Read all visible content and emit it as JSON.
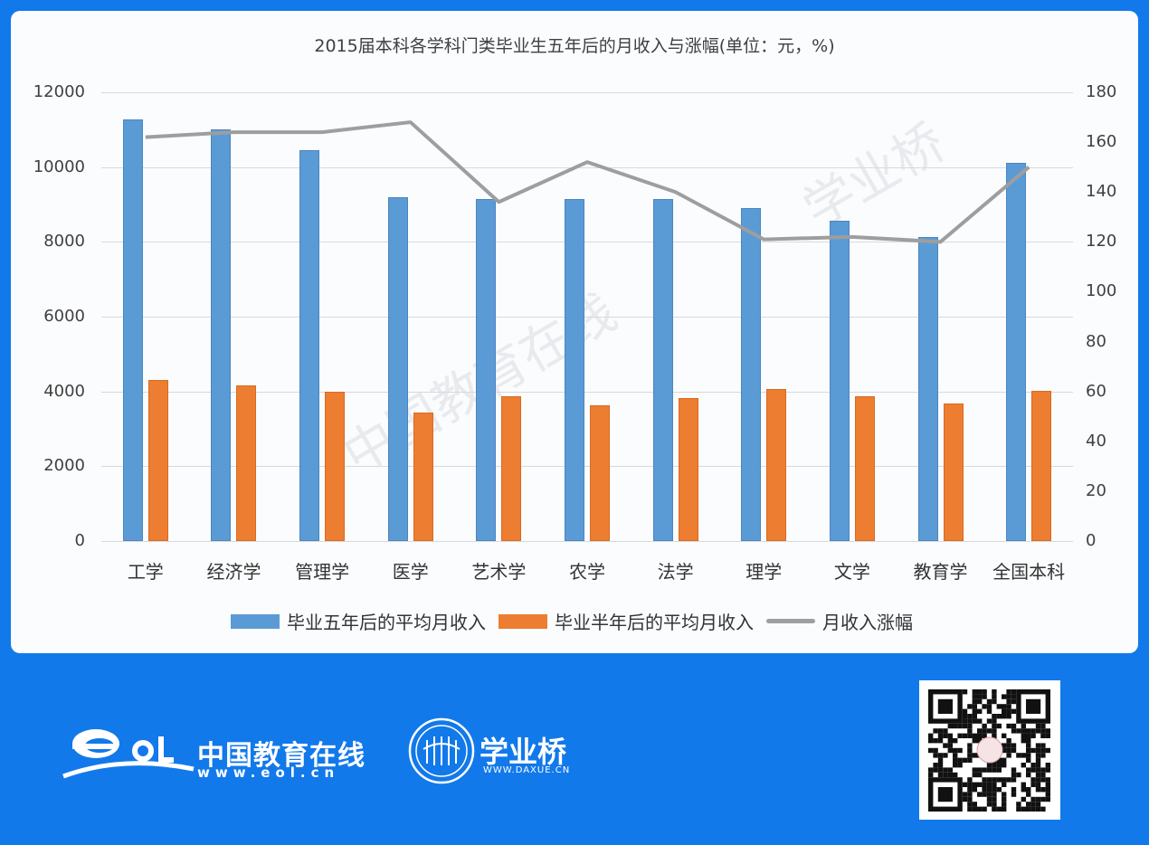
{
  "title": "2015届本科各学科门类毕业生五年后的月收入与涨幅(单位：元，%)",
  "chart_data": {
    "type": "bar",
    "title": "2015届本科各学科门类毕业生五年后的月收入与涨幅(单位：元，%)",
    "categories": [
      "工学",
      "经济学",
      "管理学",
      "医学",
      "艺术学",
      "农学",
      "法学",
      "理学",
      "文学",
      "教育学",
      "全国本科"
    ],
    "series": [
      {
        "name": "毕业五年后的平均月收入",
        "type": "bar",
        "axis": "left",
        "color": "#5b9bd5",
        "values": [
          11275,
          11009,
          10452,
          9194,
          9146,
          9146,
          9146,
          8904,
          8565,
          8130,
          10113
        ]
      },
      {
        "name": "毕业半年后的平均月收入",
        "type": "bar",
        "axis": "left",
        "color": "#ed7d31",
        "values": [
          4307,
          4162,
          3992,
          3436,
          3871,
          3629,
          3823,
          4065,
          3871,
          3678,
          4017
        ]
      },
      {
        "name": "月收入涨幅",
        "type": "line",
        "axis": "right",
        "color": "#9e9e9e",
        "values": [
          162,
          164,
          164,
          168,
          136,
          152,
          140,
          121,
          122,
          120,
          150
        ]
      }
    ],
    "y_left": {
      "ylim": [
        0,
        12000
      ],
      "ticks": [
        0,
        2000,
        4000,
        6000,
        8000,
        10000,
        12000
      ]
    },
    "y_right": {
      "ylim": [
        0,
        180
      ],
      "ticks": [
        0,
        20,
        40,
        60,
        80,
        100,
        120,
        140,
        160,
        180
      ]
    },
    "xlabel": "",
    "ylabel": "",
    "grid": true,
    "legend_position": "bottom"
  },
  "y_left_labels": [
    "12000",
    "10000",
    "8000",
    "6000",
    "4000",
    "2000",
    "0"
  ],
  "y_right_labels": [
    "180",
    "160",
    "140",
    "120",
    "100",
    "80",
    "60",
    "40",
    "20",
    "0"
  ],
  "legend": {
    "blue": "毕业五年后的平均月收入",
    "orange": "毕业半年后的平均月收入",
    "line": "月收入涨幅"
  },
  "watermarks": {
    "wm1": "中国教育在线",
    "wm2": "学业桥"
  },
  "footer": {
    "eol_name": "中国教育在线",
    "eol_url": "www.eol.cn",
    "xyq_name": "学业桥",
    "xyq_url": "WWW.DAXUE.CN"
  }
}
